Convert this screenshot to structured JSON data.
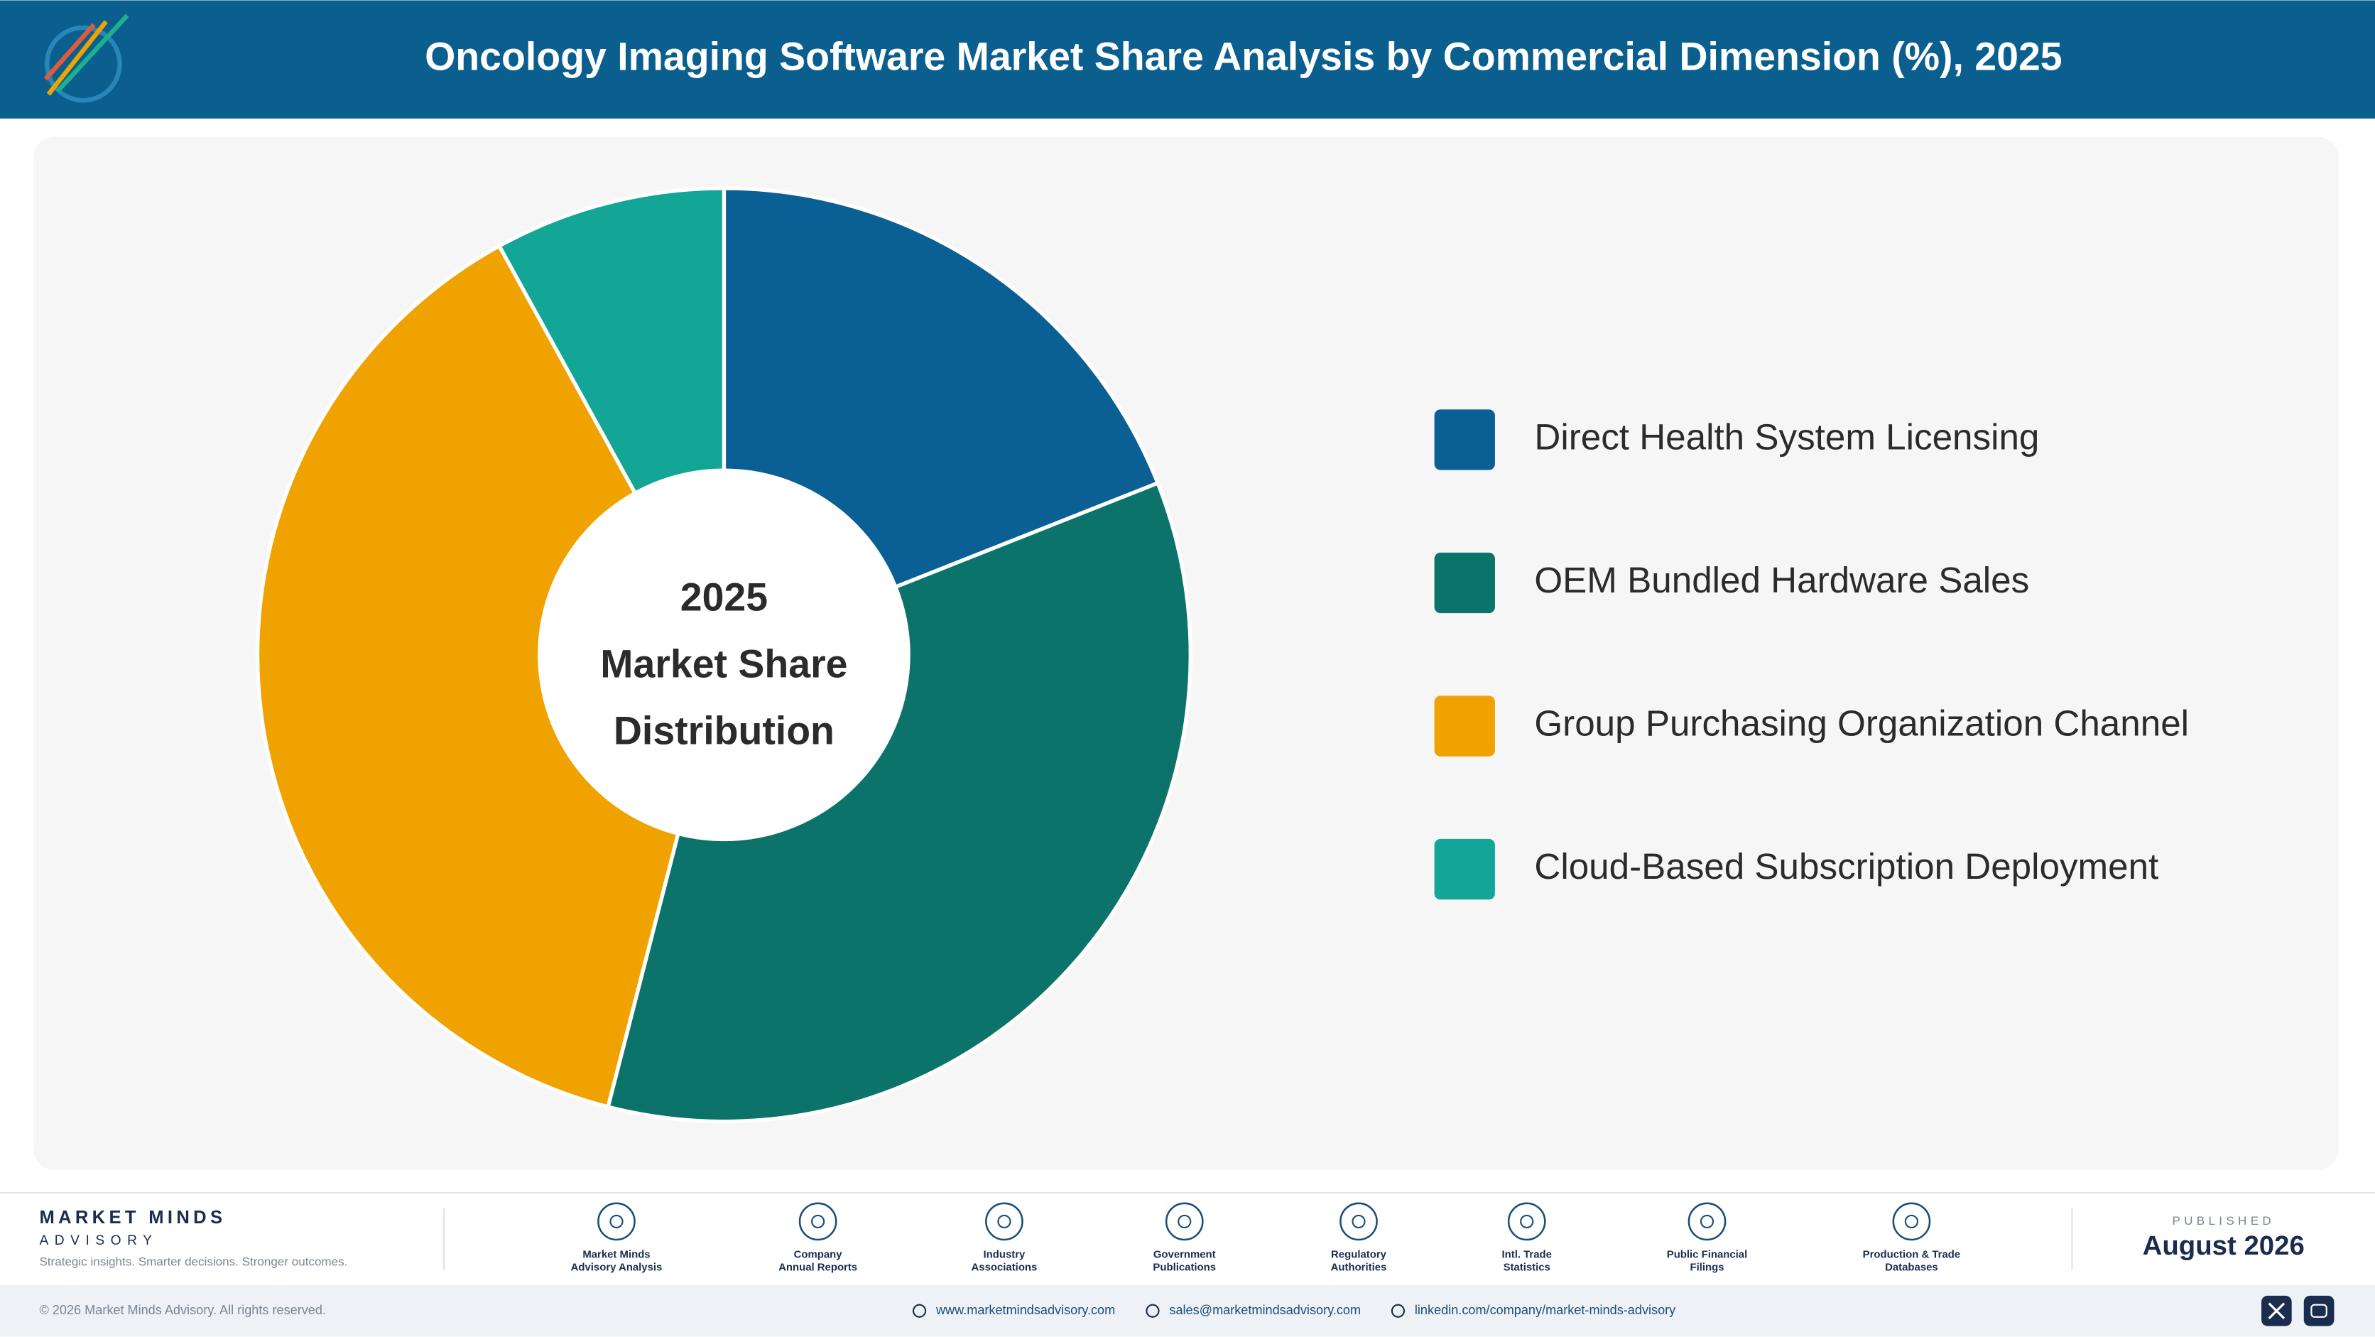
{
  "chart_data": {
    "type": "donut",
    "title": "Oncology Imaging Software Market Share Analysis by Commercial Dimension (%), 2025",
    "center_text": [
      "2025",
      "Market Share",
      "Distribution"
    ],
    "categories": [
      "Direct Health System Licensing",
      "OEM Bundled Hardware Sales",
      "Group Purchasing Organization Channel",
      "Cloud-Based Subscription Deployment"
    ],
    "values": [
      19,
      35,
      38,
      8
    ],
    "colors": [
      "#0a5f94",
      "#0b7369",
      "#f0a300",
      "#13a595"
    ]
  },
  "footer": {
    "brand": "MARKET MINDS",
    "brand_sub": "ADVISORY",
    "tagline": "Strategic insights. Smarter decisions. Stronger outcomes.",
    "sources": [
      [
        "Market Minds",
        "Advisory Analysis"
      ],
      [
        "Company",
        "Annual Reports"
      ],
      [
        "Industry",
        "Associations"
      ],
      [
        "Government",
        "Publications"
      ],
      [
        "Regulatory",
        "Authorities"
      ],
      [
        "Intl. Trade",
        "Statistics"
      ],
      [
        "Public Financial",
        "Filings"
      ],
      [
        "Production & Trade",
        "Databases"
      ]
    ],
    "published_label": "PUBLISHED",
    "published_date": "August 2026",
    "copyright": "© 2026 Market Minds Advisory. All rights reserved.",
    "links": [
      "www.marketmindsadvisory.com",
      "sales@marketmindsadvisory.com",
      "linkedin.com/company/market-minds-advisory"
    ]
  }
}
